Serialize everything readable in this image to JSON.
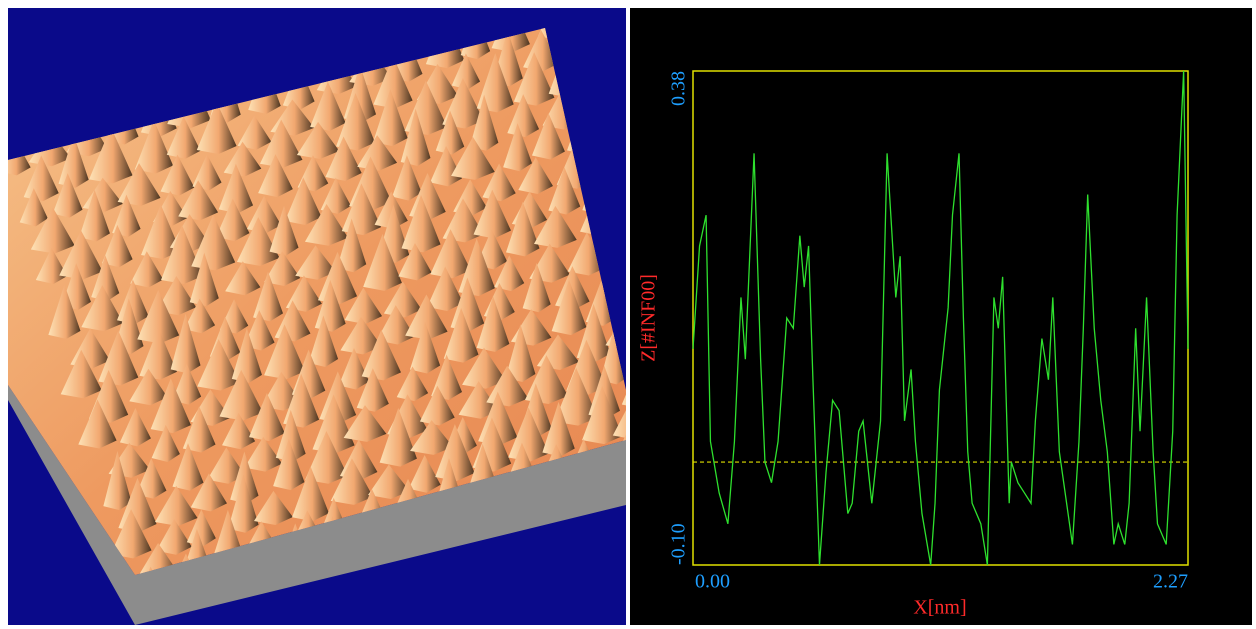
{
  "chart_data": {
    "type": "line",
    "xlabel": "X[nm]",
    "ylabel": "Z[#INF00]",
    "x": [
      0,
      0.03,
      0.06,
      0.08,
      0.12,
      0.16,
      0.19,
      0.22,
      0.24,
      0.28,
      0.31,
      0.33,
      0.36,
      0.39,
      0.43,
      0.46,
      0.49,
      0.51,
      0.53,
      0.55,
      0.58,
      0.61,
      0.64,
      0.67,
      0.71,
      0.73,
      0.76,
      0.78,
      0.79,
      0.82,
      0.86,
      0.89,
      0.93,
      0.95,
      0.97,
      1.0,
      1.02,
      1.05,
      1.09,
      1.11,
      1.13,
      1.17,
      1.19,
      1.22,
      1.24,
      1.26,
      1.28,
      1.32,
      1.35,
      1.38,
      1.4,
      1.42,
      1.45,
      1.46,
      1.49,
      1.52,
      1.55,
      1.57,
      1.6,
      1.63,
      1.65,
      1.68,
      1.72,
      1.74,
      1.77,
      1.79,
      1.81,
      1.84,
      1.87,
      1.9,
      1.93,
      1.95,
      1.98,
      2.0,
      2.03,
      2.05,
      2.08,
      2.11,
      2.13,
      2.17,
      2.2,
      2.22,
      2.25,
      2.27
    ],
    "values": [
      0.11,
      0.21,
      0.24,
      0.02,
      -0.03,
      -0.06,
      0.02,
      0.16,
      0.1,
      0.3,
      0.1,
      0.0,
      -0.02,
      0.02,
      0.14,
      0.13,
      0.22,
      0.17,
      0.21,
      0.08,
      -0.1,
      -0.01,
      0.06,
      0.05,
      -0.05,
      -0.04,
      0.03,
      0.04,
      0.02,
      -0.04,
      0.04,
      0.3,
      0.16,
      0.2,
      0.04,
      0.09,
      0.02,
      -0.05,
      -0.1,
      -0.04,
      0.07,
      0.15,
      0.24,
      0.3,
      0.14,
      0.01,
      -0.04,
      -0.06,
      -0.1,
      0.16,
      0.13,
      0.18,
      -0.04,
      0.0,
      -0.02,
      -0.03,
      -0.04,
      0.04,
      0.12,
      0.08,
      0.16,
      0.01,
      -0.05,
      -0.08,
      0.02,
      0.13,
      0.26,
      0.13,
      0.06,
      0.01,
      -0.08,
      -0.06,
      -0.08,
      -0.04,
      0.13,
      0.03,
      0.16,
      0.01,
      -0.06,
      -0.08,
      0.03,
      0.24,
      0.38,
      0.11
    ],
    "color": "#2ee02e",
    "reference_line": 0,
    "xlim": [
      0,
      2.27
    ],
    "xticks": [
      {
        "value": 0,
        "label": "0.00"
      },
      2.27
    ],
    "ylim": [
      -0.1,
      0.38
    ],
    "yticks": [
      {
        "value": -0.1,
        "label": "-0.10"
      },
      0.38
    ]
  }
}
